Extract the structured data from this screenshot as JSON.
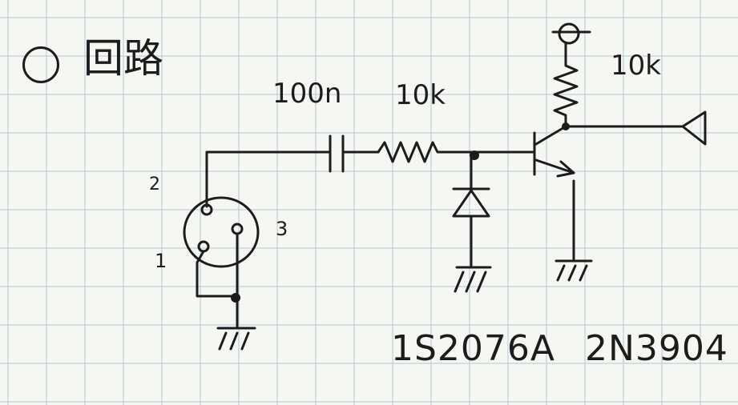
{
  "title": "回路",
  "labels": {
    "capacitor": "100n",
    "series_resistor": "10k",
    "pullup_resistor": "10k",
    "pin_1": "1",
    "pin_2": "2",
    "pin_3": "3",
    "diode_part": "1S2076A",
    "transistor_part": "2N3904"
  },
  "colors": {
    "paper": "#f6f6f2",
    "grid": "#b9d2dc",
    "ink": "#1c1c1c"
  }
}
